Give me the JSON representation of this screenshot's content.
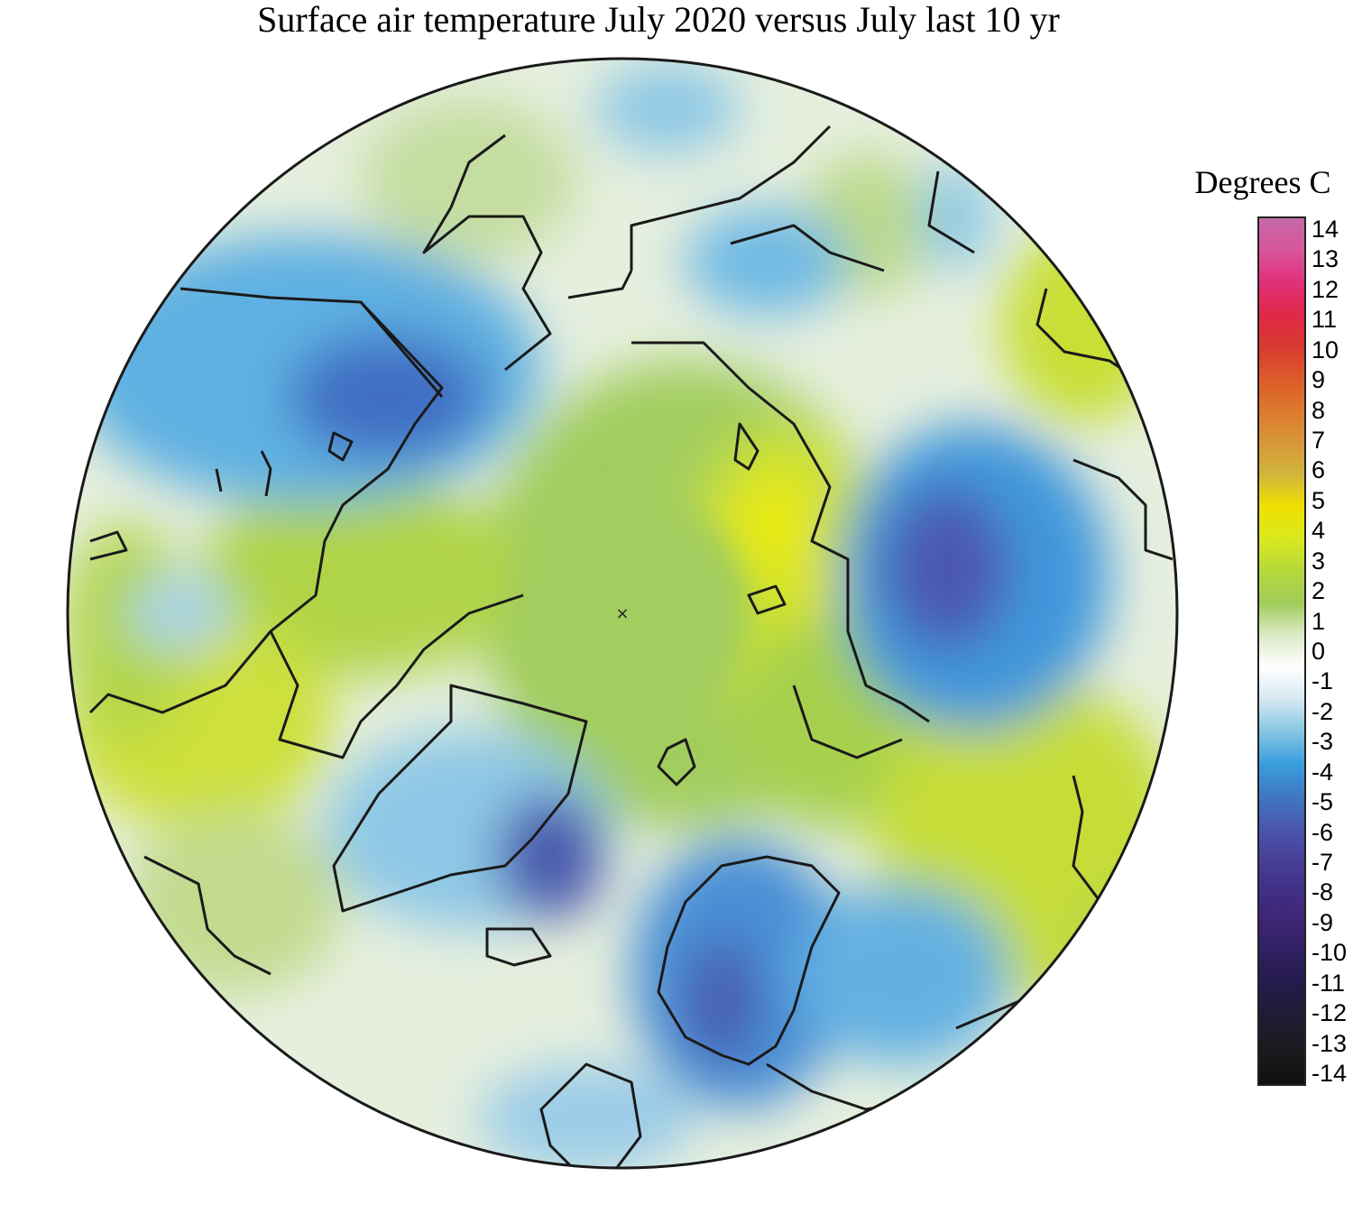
{
  "title": "Surface air temperature July 2020 versus July last 10 yr",
  "legend": {
    "title": "Degrees C",
    "ticks": [
      "14",
      "13",
      "12",
      "11",
      "10",
      "9",
      "8",
      "7",
      "6",
      "5",
      "4",
      "3",
      "2",
      "1",
      "0",
      "-1",
      "-2",
      "-3",
      "-4",
      "-5",
      "-6",
      "-7",
      "-8",
      "-9",
      "-10",
      "-11",
      "-12",
      "-13",
      "-14"
    ],
    "colors": [
      "#c46aa8",
      "#d9559a",
      "#e0307a",
      "#e02848",
      "#d83a30",
      "#dc5a2a",
      "#dd7a2c",
      "#d8973a",
      "#d0b63c",
      "#f0e000",
      "#d9e81f",
      "#b5d83a",
      "#a0cc5a",
      "#dceac8",
      "#ffffff",
      "#d6e8f2",
      "#86c6e4",
      "#3a9fde",
      "#3f78c4",
      "#4a58ad",
      "#483f98",
      "#412e86",
      "#3c2472",
      "#2e1f5e",
      "#241a4a",
      "#1e1c30",
      "#1a1a1e",
      "#111111"
    ]
  },
  "map": {
    "pole_marker": "×"
  }
}
